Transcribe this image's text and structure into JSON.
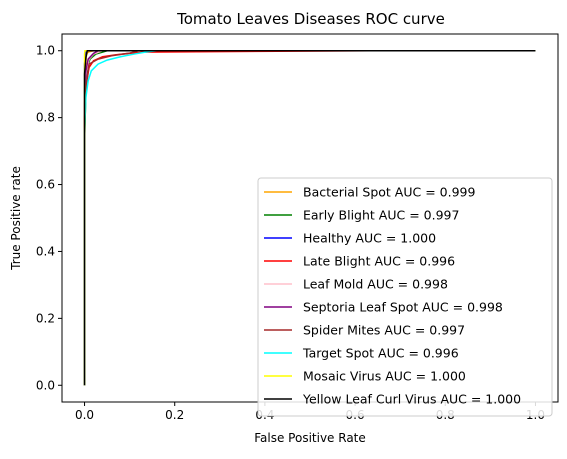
{
  "chart_data": {
    "type": "line",
    "title": "Tomato Leaves Diseases ROC curve",
    "xlabel": "False Positive Rate",
    "ylabel": "True Positive rate",
    "xlim": [
      -0.05,
      1.05
    ],
    "ylim": [
      -0.05,
      1.05
    ],
    "xticks": [
      "0.0",
      "0.2",
      "0.4",
      "0.6",
      "0.8",
      "1.0"
    ],
    "yticks": [
      "0.0",
      "0.2",
      "0.4",
      "0.6",
      "0.8",
      "1.0"
    ],
    "grid": false,
    "legend_position": "lower-right",
    "series": [
      {
        "name": "Bacterial Spot AUC = 0.999",
        "color": "#ffa500",
        "x": [
          0,
          0,
          0.002,
          0.004,
          0.006,
          0.01,
          0.02,
          1.0
        ],
        "y": [
          0,
          0.88,
          0.95,
          0.985,
          0.993,
          0.997,
          1.0,
          1.0
        ]
      },
      {
        "name": "Early Blight AUC = 0.997",
        "color": "#008000",
        "x": [
          0,
          0,
          0.003,
          0.006,
          0.012,
          0.025,
          0.05,
          1.0
        ],
        "y": [
          0,
          0.73,
          0.88,
          0.95,
          0.975,
          0.99,
          1.0,
          1.0
        ]
      },
      {
        "name": "Healthy AUC = 1.000",
        "color": "#0000ff",
        "x": [
          0,
          0,
          0.002,
          0.004,
          1.0
        ],
        "y": [
          0,
          0.96,
          0.99,
          1.0,
          1.0
        ]
      },
      {
        "name": "Late Blight AUC = 0.996",
        "color": "#ff0000",
        "x": [
          0,
          0,
          0.004,
          0.01,
          0.02,
          0.04,
          0.07,
          0.1,
          0.13,
          0.25,
          0.63,
          1.0
        ],
        "y": [
          0,
          0.8,
          0.9,
          0.95,
          0.97,
          0.982,
          0.988,
          0.992,
          0.996,
          0.997,
          1.0,
          1.0
        ]
      },
      {
        "name": "Leaf Mold AUC = 0.998",
        "color": "#ffc0cb",
        "x": [
          0,
          0,
          0.004,
          0.01,
          0.02,
          0.04,
          1.0
        ],
        "y": [
          0,
          0.85,
          0.94,
          0.975,
          0.99,
          1.0,
          1.0
        ]
      },
      {
        "name": "Septoria Leaf Spot AUC = 0.998",
        "color": "#800080",
        "x": [
          0,
          0,
          0.003,
          0.008,
          0.02,
          0.03,
          1.0
        ],
        "y": [
          0,
          0.84,
          0.94,
          0.975,
          0.992,
          1.0,
          1.0
        ]
      },
      {
        "name": "Spider Mites AUC = 0.997",
        "color": "#a52a2a",
        "x": [
          0,
          0,
          0.004,
          0.01,
          0.03,
          0.06,
          0.1,
          0.12,
          1.0
        ],
        "y": [
          0,
          0.8,
          0.9,
          0.96,
          0.975,
          0.985,
          0.993,
          1.0,
          1.0
        ]
      },
      {
        "name": "Target Spot AUC = 0.996",
        "color": "#00ffff",
        "x": [
          0,
          0,
          0.003,
          0.008,
          0.015,
          0.03,
          0.05,
          0.08,
          0.11,
          0.14,
          0.16,
          1.0
        ],
        "y": [
          0,
          0.76,
          0.86,
          0.91,
          0.94,
          0.96,
          0.972,
          0.982,
          0.99,
          0.997,
          1.0,
          1.0
        ]
      },
      {
        "name": "Mosaic Virus AUC = 1.000",
        "color": "#ffff00",
        "x": [
          0,
          0,
          0.001,
          1.0
        ],
        "y": [
          0,
          0.99,
          1.0,
          1.0
        ]
      },
      {
        "name": "Yellow Leaf Curl Virus AUC = 1.000",
        "color": "#000000",
        "x": [
          0,
          0,
          0.003,
          0.006,
          1.0
        ],
        "y": [
          0,
          0.93,
          0.98,
          1.0,
          1.0
        ]
      }
    ]
  }
}
